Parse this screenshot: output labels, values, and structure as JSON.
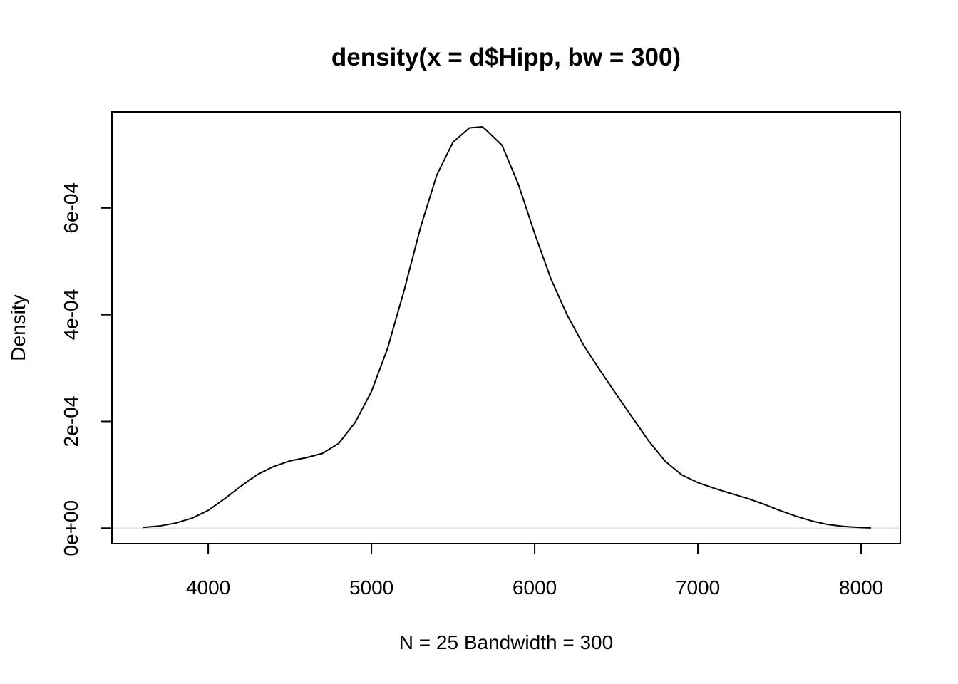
{
  "chart_data": {
    "type": "line",
    "title": "density(x = d$Hipp, bw = 300)",
    "xlabel": "N = 25   Bandwidth = 300",
    "ylabel": "Density",
    "xlim": [
      3410,
      8240
    ],
    "ylim": [
      -2.9e-05,
      0.00078
    ],
    "x_ticks": [
      4000,
      5000,
      6000,
      7000,
      8000
    ],
    "x_tick_labels": [
      "4000",
      "5000",
      "6000",
      "7000",
      "8000"
    ],
    "y_ticks": [
      0,
      0.0002,
      0.0004,
      0.0006
    ],
    "y_tick_labels": [
      "0e+00",
      "2e-04",
      "4e-04",
      "6e-04"
    ],
    "grid": false,
    "baseline": 0,
    "colors": {
      "line": "#000000",
      "baseline": "#e0e0e0",
      "frame": "#000000"
    },
    "series": [
      {
        "x": [
          3600,
          3700,
          3800,
          3900,
          4000,
          4100,
          4200,
          4300,
          4400,
          4500,
          4600,
          4700,
          4800,
          4900,
          5000,
          5100,
          5200,
          5300,
          5400,
          5500,
          5600,
          5680,
          5700,
          5800,
          5900,
          6000,
          6100,
          6200,
          6300,
          6400,
          6500,
          6600,
          6700,
          6800,
          6900,
          7000,
          7100,
          7200,
          7300,
          7400,
          7500,
          7600,
          7700,
          7800,
          7900,
          8000,
          8060
        ],
        "y": [
          1.3e-06,
          4e-06,
          9.4e-06,
          1.87e-05,
          3.34e-05,
          5.5e-05,
          7.85e-05,
          0.0001002,
          0.0001155,
          0.000126,
          0.000132,
          0.00014,
          0.000159,
          0.000198,
          0.000256,
          0.000338,
          0.0004453,
          0.0005627,
          0.0006614,
          0.0007233,
          0.00075,
          0.000752,
          0.0007467,
          0.0007173,
          0.0006443,
          0.000552,
          0.0004667,
          0.0003987,
          0.0003427,
          0.000296,
          0.0002507,
          0.0002067,
          0.0001627,
          0.0001253,
          0.0001,
          8.53e-05,
          7.47e-05,
          6.53e-05,
          5.6e-05,
          4.53e-05,
          3.33e-05,
          2.27e-05,
          1.33e-05,
          6.7e-06,
          3.1e-06,
          1.2e-06,
          5e-07
        ]
      }
    ]
  }
}
